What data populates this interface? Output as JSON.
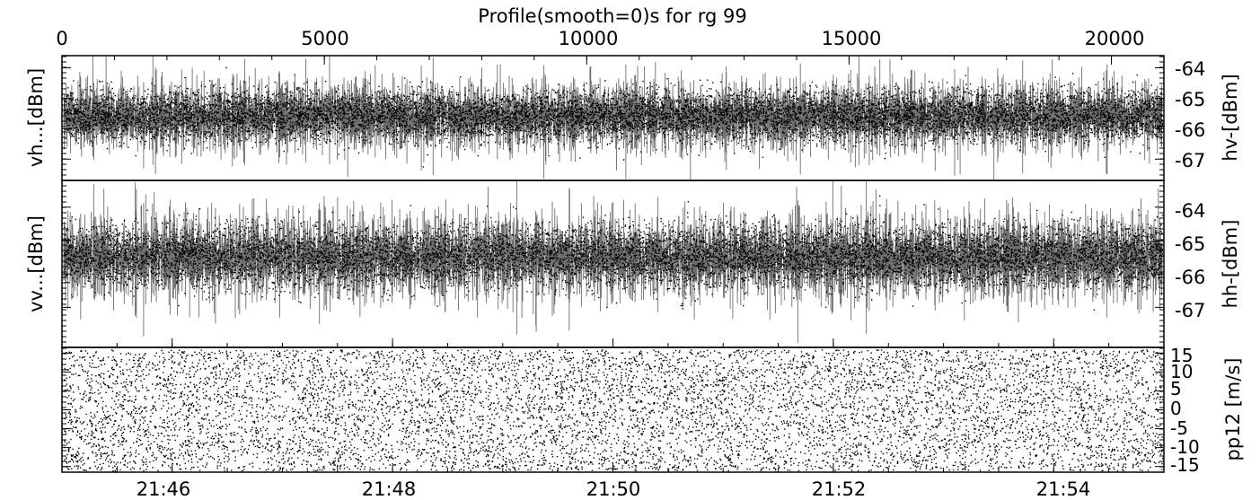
{
  "title": "Profile(smooth=0)s for rg 99",
  "colors": {
    "background": "#ffffff",
    "axis": "#000000",
    "dots": "#000000",
    "lines": "#6e6e6e"
  },
  "chart_data": [
    {
      "type": "scatter",
      "panel": "top",
      "title": "Profile(smooth=0)s for rg 99",
      "top_axis": {
        "range": [
          0,
          21000
        ],
        "ticks": [
          0,
          5000,
          10000,
          15000,
          20000
        ],
        "tick_labels": [
          "0",
          "5000",
          "10000",
          "15000",
          "20000"
        ]
      },
      "ylabel_left": "vh...[dBm]",
      "ylabel_right": "hv-[dBm]",
      "ylim": [
        -67.7,
        -63.6
      ],
      "right_ticks": [
        -64,
        -65,
        -66,
        -67
      ],
      "right_tick_labels": [
        "-64",
        "-65",
        "-66",
        "-67"
      ],
      "series": [
        {
          "style": "gray-lines",
          "mean": -65.6,
          "spread": 0.35
        },
        {
          "style": "black-dots",
          "mean": -65.55,
          "spread": 0.4
        }
      ]
    },
    {
      "type": "scatter",
      "panel": "middle",
      "ylabel_left": "vv...[dBm]",
      "ylabel_right": "hh-[dBm]",
      "ylim": [
        -68.2,
        -63.2
      ],
      "right_ticks": [
        -64,
        -65,
        -66,
        -67
      ],
      "right_tick_labels": [
        "-64",
        "-65",
        "-66",
        "-67"
      ],
      "series": [
        {
          "style": "gray-lines",
          "mean": -65.5,
          "spread": 0.4
        },
        {
          "style": "black-dots",
          "mean": -65.45,
          "spread": 0.45
        }
      ]
    },
    {
      "type": "scatter",
      "panel": "bottom",
      "ylabel_right": "pp12 [m/s]",
      "ylim": [
        -16.5,
        16.5
      ],
      "right_ticks": [
        15,
        10,
        5,
        0,
        -5,
        -10,
        -15
      ],
      "right_tick_labels": [
        "15",
        "10",
        "5",
        "0",
        "-5",
        "-10",
        "-15"
      ],
      "series": [
        {
          "style": "black-dots",
          "distribution": "uniform",
          "range": [
            -16,
            16
          ]
        }
      ],
      "x_axis": {
        "range": [
          "21:45:00",
          "21:55:00"
        ],
        "ticks": [
          "21:46",
          "21:48",
          "21:50",
          "21:52",
          "21:54"
        ],
        "tick_labels": [
          "21:46",
          "21:48",
          "21:50",
          "21:52",
          "21:54"
        ]
      }
    }
  ]
}
